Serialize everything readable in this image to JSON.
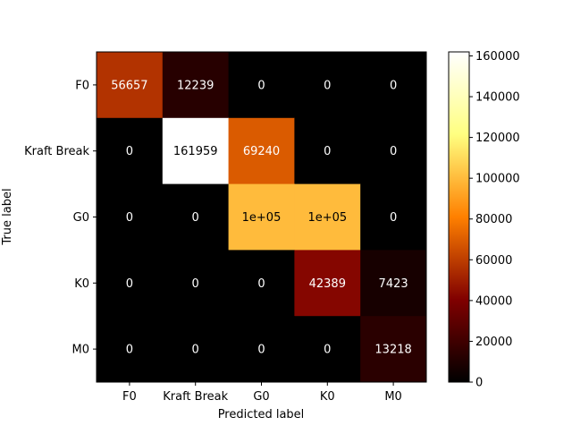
{
  "chart_data": {
    "type": "heatmap",
    "subtype": "confusion-matrix",
    "title": "",
    "xlabel": "Predicted label",
    "ylabel": "True label",
    "x_categories": [
      "F0",
      "Kraft Break",
      "G0",
      "K0",
      "M0"
    ],
    "y_categories": [
      "F0",
      "Kraft Break",
      "G0",
      "K0",
      "M0"
    ],
    "values": [
      [
        56657,
        12239,
        0,
        0,
        0
      ],
      [
        0,
        161959,
        69240,
        0,
        0
      ],
      [
        0,
        0,
        100000,
        100000,
        0
      ],
      [
        0,
        0,
        0,
        42389,
        7423
      ],
      [
        0,
        0,
        0,
        0,
        13218
      ]
    ],
    "cell_labels": [
      [
        "56657",
        "12239",
        "0",
        "0",
        "0"
      ],
      [
        "0",
        "161959",
        "69240",
        "0",
        "0"
      ],
      [
        "0",
        "0",
        "1e+05",
        "1e+05",
        "0"
      ],
      [
        "0",
        "0",
        "0",
        "42389",
        "7423"
      ],
      [
        "0",
        "0",
        "0",
        "0",
        "13218"
      ]
    ],
    "colormap": "afmhot",
    "colorbar": {
      "range": [
        0,
        161959
      ],
      "ticks": [
        0,
        20000,
        40000,
        60000,
        80000,
        100000,
        120000,
        140000,
        160000
      ],
      "tick_labels": [
        "0",
        "20000",
        "40000",
        "60000",
        "80000",
        "100000",
        "120000",
        "140000",
        "160000"
      ]
    },
    "text_colors": {
      "light": "#ffffff",
      "dark": "#000000"
    }
  }
}
